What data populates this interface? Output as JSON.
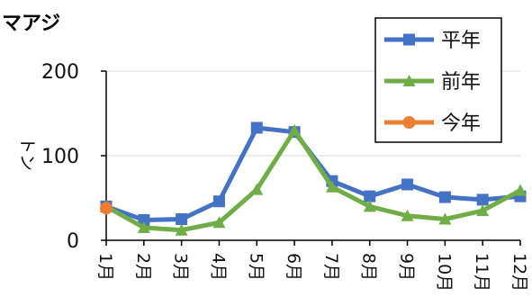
{
  "chart_data": {
    "type": "line",
    "title": "マアジ",
    "ylabel": "トン",
    "xlabel": "",
    "categories": [
      "1月",
      "2月",
      "3月",
      "4月",
      "5月",
      "6月",
      "7月",
      "8月",
      "9月",
      "10月",
      "11月",
      "12月"
    ],
    "ylim": [
      0,
      200
    ],
    "yticks": [
      "0",
      "100",
      "200"
    ],
    "grid": true,
    "legend_position": "top-right",
    "series": [
      {
        "name": "平年",
        "color": "#4472C4",
        "marker": "square",
        "values": [
          40,
          24,
          25,
          46,
          133,
          128,
          70,
          52,
          66,
          51,
          48,
          52
        ]
      },
      {
        "name": "前年",
        "color": "#70AD47",
        "marker": "triangle",
        "values": [
          40,
          15,
          12,
          21,
          60,
          130,
          63,
          40,
          29,
          25,
          35,
          59
        ]
      },
      {
        "name": "今年",
        "color": "#ED7D31",
        "marker": "circle",
        "values": [
          38,
          null,
          null,
          null,
          null,
          null,
          null,
          null,
          null,
          null,
          null,
          null
        ]
      }
    ]
  }
}
